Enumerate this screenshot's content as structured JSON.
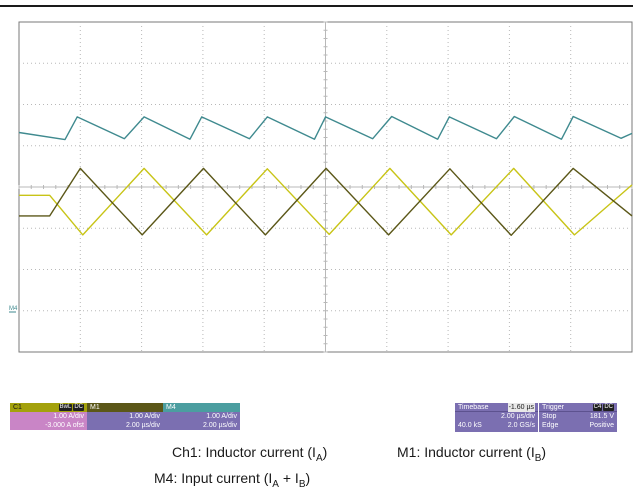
{
  "scope": {
    "m4_marker": "M4",
    "colors": {
      "frame": "#7a7a7a",
      "grid": "#b8b8b8",
      "trace_m4": "#3f8a8f",
      "trace_c1": "#c8c417",
      "trace_m1": "#5b5718",
      "c1_panel": "#c985c6",
      "c1_header": "#a3a10c",
      "m1_panel": "#7b6fb1",
      "m4_panel": "#7b6fb1",
      "m4_header": "#4b9ea0",
      "timebase_panel": "#7b6fb1"
    }
  },
  "chart_data": {
    "type": "line",
    "x_unit": "µs",
    "timebase_us_per_div": 2.0,
    "x_range_div": [
      0,
      10
    ],
    "y_range_div": [
      0,
      8
    ],
    "grid": true,
    "series": [
      {
        "name": "M4",
        "points": [
          [
            0.0,
            5.32
          ],
          [
            0.75,
            5.15
          ],
          [
            0.95,
            5.7
          ],
          [
            1.72,
            5.17
          ],
          [
            2.04,
            5.7
          ],
          [
            2.79,
            5.16
          ],
          [
            2.98,
            5.7
          ],
          [
            3.76,
            5.17
          ],
          [
            4.05,
            5.7
          ],
          [
            4.82,
            5.16
          ],
          [
            5.0,
            5.7
          ],
          [
            5.77,
            5.17
          ],
          [
            6.08,
            5.71
          ],
          [
            6.83,
            5.16
          ],
          [
            7.02,
            5.7
          ],
          [
            7.79,
            5.17
          ],
          [
            8.08,
            5.71
          ],
          [
            8.85,
            5.16
          ],
          [
            9.04,
            5.71
          ],
          [
            9.82,
            5.18
          ],
          [
            10.0,
            5.3
          ]
        ]
      },
      {
        "name": "C1",
        "points": [
          [
            0.0,
            3.8
          ],
          [
            0.5,
            3.8
          ],
          [
            1.04,
            2.84
          ],
          [
            2.04,
            4.45
          ],
          [
            3.06,
            2.84
          ],
          [
            4.05,
            4.44
          ],
          [
            5.06,
            2.85
          ],
          [
            6.05,
            4.45
          ],
          [
            7.05,
            2.84
          ],
          [
            8.07,
            4.45
          ],
          [
            9.06,
            2.84
          ],
          [
            10.0,
            4.05
          ]
        ]
      },
      {
        "name": "M1",
        "points": [
          [
            0.0,
            3.3
          ],
          [
            0.5,
            3.3
          ],
          [
            1.0,
            4.45
          ],
          [
            2.01,
            2.84
          ],
          [
            3.01,
            4.45
          ],
          [
            4.02,
            2.84
          ],
          [
            5.01,
            4.45
          ],
          [
            6.03,
            2.84
          ],
          [
            7.03,
            4.44
          ],
          [
            8.03,
            2.83
          ],
          [
            9.04,
            4.45
          ],
          [
            10.0,
            3.3
          ]
        ]
      }
    ]
  },
  "readouts": {
    "c1": {
      "label": "C1",
      "badge1": "BwL",
      "badge2": "DC",
      "vdiv": "1.00 A/div",
      "offset": "-3.000 A ofst"
    },
    "m1": {
      "label": "M1",
      "vdiv": "1.00 A/div",
      "tdiv": "2.00 µs/div"
    },
    "m4": {
      "label": "M4",
      "vdiv": "1.00 A/div",
      "tdiv": "2.00 µs/div"
    },
    "timebase": {
      "label": "Timebase",
      "delay": "-1.60 µs",
      "tdiv": "2.00 µs/div",
      "samples": "40.0 kS",
      "rate": "2.0 GS/s"
    },
    "trigger": {
      "label": "Trigger",
      "badge1": "C4",
      "badge2": "DC",
      "mode": "Stop",
      "level": "181.5 V",
      "type": "Edge",
      "slope": "Positive"
    }
  },
  "captions": {
    "ch1_text": "Ch1: Inductor current (I",
    "ch1_sub": "A",
    "m1_text": "M1: Inductor current (I",
    "m1_sub": "B",
    "m4_text": "M4: Input current (I",
    "m4_sub1": "A",
    "m4_plus": " + I",
    "m4_sub2": "B",
    "close_paren": ")"
  }
}
